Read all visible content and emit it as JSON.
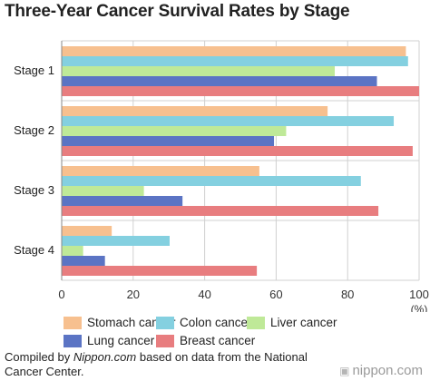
{
  "chart_data": {
    "type": "bar",
    "orientation": "horizontal",
    "title": "Three-Year Cancer Survival Rates by Stage",
    "categories": [
      "Stage 1",
      "Stage 2",
      "Stage 3",
      "Stage 4"
    ],
    "series": [
      {
        "name": "Stomach cancer",
        "color": "#f7c08f",
        "values": [
          96.3,
          74.4,
          55.3,
          14.0
        ]
      },
      {
        "name": "Colon cancer",
        "color": "#84d0e0",
        "values": [
          96.9,
          92.9,
          83.7,
          30.2
        ]
      },
      {
        "name": "Liver cancer",
        "color": "#bfe998",
        "values": [
          76.4,
          62.8,
          23.0,
          6.0
        ]
      },
      {
        "name": "Lung cancer",
        "color": "#5b74c4",
        "values": [
          88.2,
          59.4,
          33.8,
          12.1
        ]
      },
      {
        "name": "Breast cancer",
        "color": "#e87d7f",
        "values": [
          100.0,
          98.2,
          88.6,
          54.6
        ]
      }
    ],
    "xlim": [
      0,
      100
    ],
    "xticks": [
      "0",
      "20",
      "40",
      "60",
      "80",
      "100"
    ],
    "xunit": "(%)",
    "grid": true,
    "legend_placement": "bottom"
  },
  "caption": {
    "prefix": "Compiled by ",
    "source": "Nippon.com",
    "suffix": " based on data from the National Cancer Center."
  },
  "brand": {
    "mark": "⬛",
    "name": "nippon.com"
  }
}
